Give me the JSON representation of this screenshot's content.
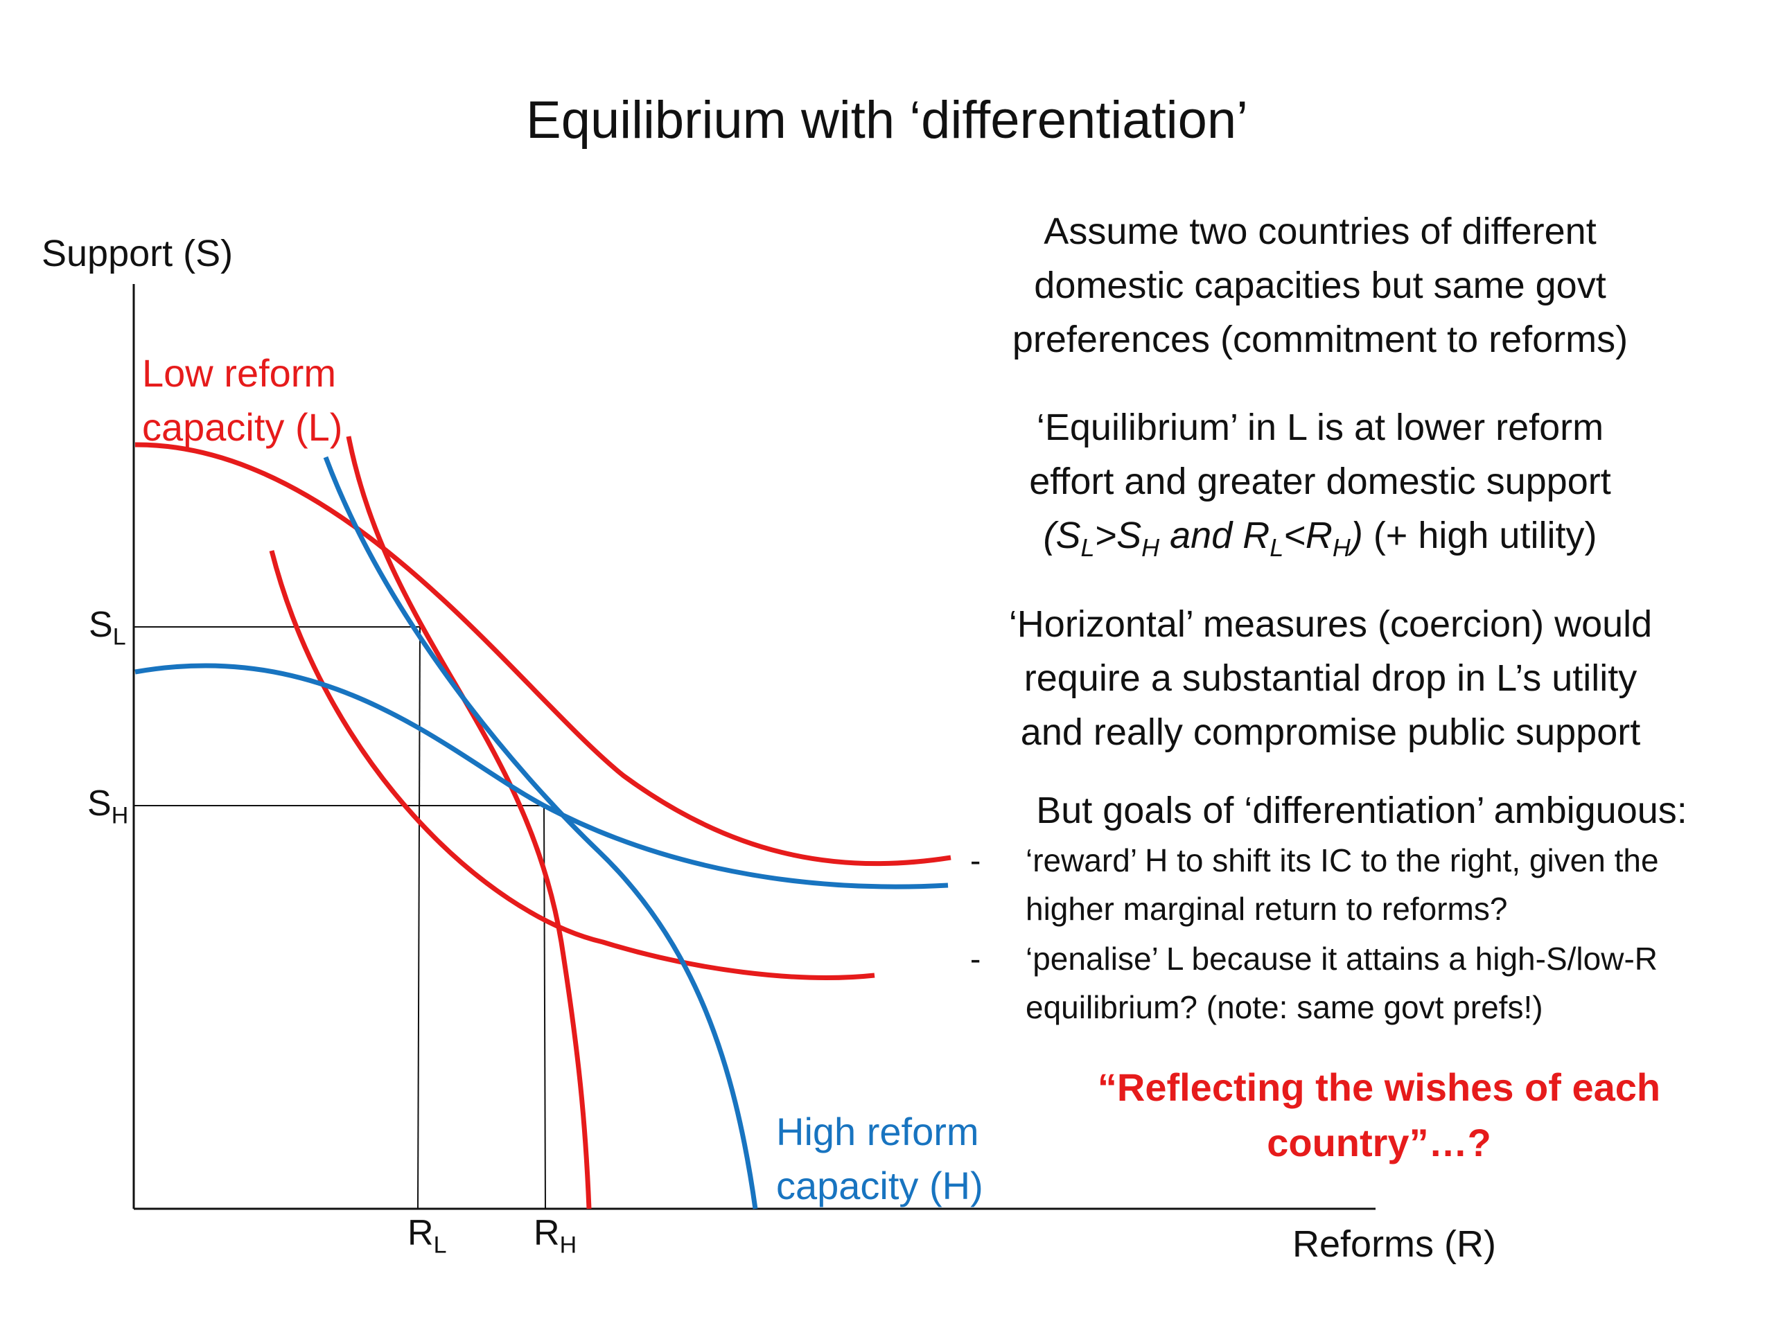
{
  "title": "Equilibrium with ‘differentiation’",
  "axes": {
    "y_label": "Support (S)",
    "x_label": "Reforms (R)"
  },
  "curve_labels": {
    "low": [
      "Low reform",
      "capacity (L)"
    ],
    "high": [
      "High reform",
      "capacity (H)"
    ]
  },
  "ticks": {
    "s_low": {
      "main": "S",
      "sub": "L"
    },
    "s_high": {
      "main": "S",
      "sub": "H"
    },
    "r_low": {
      "main": "R",
      "sub": "L"
    },
    "r_high": {
      "main": "R",
      "sub": "H"
    }
  },
  "text": {
    "assume": [
      "Assume two countries of different",
      "domestic capacities but same govt",
      "preferences (commitment to reforms)"
    ],
    "equilibrium": {
      "line1": "‘Equilibrium’ in L is at lower reform",
      "line2": "effort and greater domestic support",
      "line3_italic": "(S_L>S_H and R_L<R_H)",
      "line3_rest": " (+ high utility)"
    },
    "horizontal": [
      "‘Horizontal’ measures (coercion) would",
      "require a substantial drop in L’s utility",
      "and really compromise public support"
    ],
    "goals_head": "But goals of ‘differentiation’ ambiguous:",
    "bullets": [
      {
        "dash": "-",
        "text": "‘reward’ H to shift its IC to the right, given the higher marginal return to reforms?"
      },
      {
        "dash": "-",
        "text": "‘penalise’ L because it attains a high-S/low-R equilibrium? (note: same govt prefs!)"
      }
    ],
    "quote": "“Reflecting the wishes of each country”…?"
  },
  "colors": {
    "low": "#e61b1b",
    "high": "#1874c0",
    "axis": "#111111"
  }
}
